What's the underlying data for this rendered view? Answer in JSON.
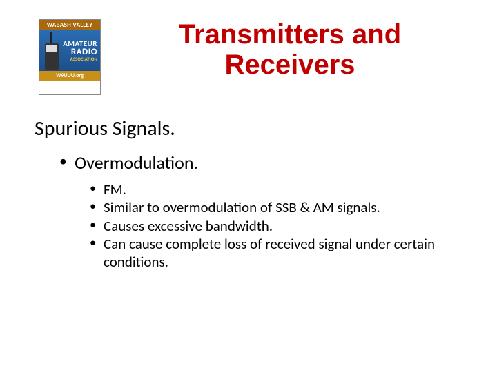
{
  "logo": {
    "top_band": "WABASH VALLEY",
    "line1": "AMATEUR",
    "line2": "RADIO",
    "assoc": "ASSOCIATION",
    "callsign": "W9UUU.org"
  },
  "title": "Transmitters and Receivers",
  "subtitle": "Spurious Signals.",
  "level1": {
    "item": "Overmodulation."
  },
  "level2": {
    "items": [
      "FM.",
      "Similar to overmodulation of SSB & AM signals.",
      "Causes excessive bandwidth.",
      "Can cause complete loss of received signal under certain conditions."
    ]
  },
  "colors": {
    "title_color": "#c00000",
    "text_color": "#000000",
    "logo_band": "#a8680d",
    "logo_bg_top": "#2b6db3",
    "logo_bg_bottom": "#1c4f8a",
    "logo_callsign_bg": "#c89018"
  },
  "typography": {
    "title_fontsize_pt": 40,
    "title_weight": 900,
    "subtitle_fontsize_pt": 30,
    "l1_fontsize_pt": 26,
    "l2_fontsize_pt": 21,
    "font_family": "Calibri"
  }
}
